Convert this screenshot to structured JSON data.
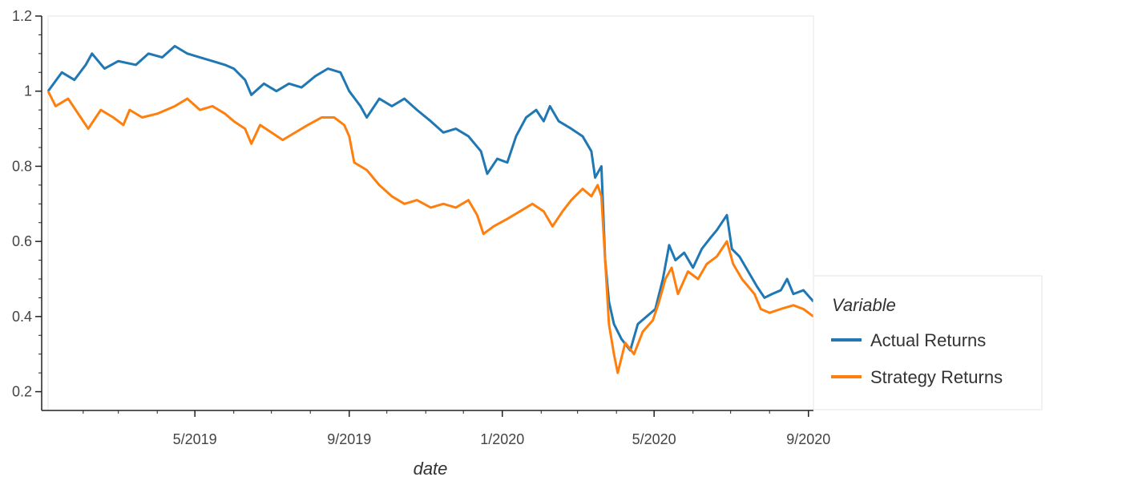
{
  "chart_data": {
    "type": "line",
    "xlabel": "date",
    "ylabel": "",
    "ylim": [
      0.15,
      1.2
    ],
    "xlim": [
      "2019-01-04",
      "2020-09-05"
    ],
    "x_ticks": [
      {
        "date": "2019-05-01",
        "label": "5/2019"
      },
      {
        "date": "2019-09-01",
        "label": "9/2019"
      },
      {
        "date": "2020-01-01",
        "label": "1/2020"
      },
      {
        "date": "2020-05-01",
        "label": "5/2020"
      },
      {
        "date": "2020-09-01",
        "label": "9/2020"
      }
    ],
    "y_ticks": [
      {
        "value": 0.2,
        "label": "0.2"
      },
      {
        "value": 0.4,
        "label": "0.4"
      },
      {
        "value": 0.6,
        "label": "0.6"
      },
      {
        "value": 0.8,
        "label": "0.8"
      },
      {
        "value": 1.0,
        "label": "1"
      },
      {
        "value": 1.2,
        "label": "1.2"
      }
    ],
    "grid": false,
    "legend": {
      "title": "Variable",
      "placement": "right-bottom-outside"
    },
    "series": [
      {
        "name": "Actual Returns",
        "color": "#1f77b4",
        "points": [
          [
            "2019-01-04",
            1.0
          ],
          [
            "2019-01-15",
            1.05
          ],
          [
            "2019-01-25",
            1.03
          ],
          [
            "2019-02-03",
            1.07
          ],
          [
            "2019-02-08",
            1.1
          ],
          [
            "2019-02-18",
            1.06
          ],
          [
            "2019-03-01",
            1.08
          ],
          [
            "2019-03-15",
            1.07
          ],
          [
            "2019-03-25",
            1.1
          ],
          [
            "2019-04-05",
            1.09
          ],
          [
            "2019-04-15",
            1.12
          ],
          [
            "2019-04-25",
            1.1
          ],
          [
            "2019-05-05",
            1.09
          ],
          [
            "2019-05-15",
            1.08
          ],
          [
            "2019-05-25",
            1.07
          ],
          [
            "2019-06-01",
            1.06
          ],
          [
            "2019-06-10",
            1.03
          ],
          [
            "2019-06-15",
            0.99
          ],
          [
            "2019-06-25",
            1.02
          ],
          [
            "2019-07-05",
            1.0
          ],
          [
            "2019-07-15",
            1.02
          ],
          [
            "2019-07-25",
            1.01
          ],
          [
            "2019-08-05",
            1.04
          ],
          [
            "2019-08-15",
            1.06
          ],
          [
            "2019-08-25",
            1.05
          ],
          [
            "2019-09-01",
            1.0
          ],
          [
            "2019-09-10",
            0.96
          ],
          [
            "2019-09-15",
            0.93
          ],
          [
            "2019-09-25",
            0.98
          ],
          [
            "2019-10-05",
            0.96
          ],
          [
            "2019-10-15",
            0.98
          ],
          [
            "2019-10-25",
            0.95
          ],
          [
            "2019-11-05",
            0.92
          ],
          [
            "2019-11-15",
            0.89
          ],
          [
            "2019-11-25",
            0.9
          ],
          [
            "2019-12-05",
            0.88
          ],
          [
            "2019-12-15",
            0.84
          ],
          [
            "2019-12-20",
            0.78
          ],
          [
            "2019-12-28",
            0.82
          ],
          [
            "2020-01-05",
            0.81
          ],
          [
            "2020-01-12",
            0.88
          ],
          [
            "2020-01-20",
            0.93
          ],
          [
            "2020-01-28",
            0.95
          ],
          [
            "2020-02-03",
            0.92
          ],
          [
            "2020-02-08",
            0.96
          ],
          [
            "2020-02-15",
            0.92
          ],
          [
            "2020-02-25",
            0.9
          ],
          [
            "2020-03-05",
            0.88
          ],
          [
            "2020-03-12",
            0.84
          ],
          [
            "2020-03-15",
            0.77
          ],
          [
            "2020-03-20",
            0.8
          ],
          [
            "2020-03-23",
            0.55
          ],
          [
            "2020-03-26",
            0.44
          ],
          [
            "2020-03-30",
            0.38
          ],
          [
            "2020-04-05",
            0.34
          ],
          [
            "2020-04-12",
            0.31
          ],
          [
            "2020-04-18",
            0.38
          ],
          [
            "2020-04-25",
            0.4
          ],
          [
            "2020-05-02",
            0.42
          ],
          [
            "2020-05-08",
            0.5
          ],
          [
            "2020-05-13",
            0.59
          ],
          [
            "2020-05-18",
            0.55
          ],
          [
            "2020-05-25",
            0.57
          ],
          [
            "2020-06-01",
            0.53
          ],
          [
            "2020-06-08",
            0.58
          ],
          [
            "2020-06-15",
            0.61
          ],
          [
            "2020-06-20",
            0.63
          ],
          [
            "2020-06-28",
            0.67
          ],
          [
            "2020-07-02",
            0.58
          ],
          [
            "2020-07-08",
            0.56
          ],
          [
            "2020-07-15",
            0.52
          ],
          [
            "2020-07-22",
            0.48
          ],
          [
            "2020-07-28",
            0.45
          ],
          [
            "2020-08-03",
            0.46
          ],
          [
            "2020-08-10",
            0.47
          ],
          [
            "2020-08-15",
            0.5
          ],
          [
            "2020-08-20",
            0.46
          ],
          [
            "2020-08-28",
            0.47
          ],
          [
            "2020-09-05",
            0.44
          ]
        ]
      },
      {
        "name": "Strategy Returns",
        "color": "#ff7f0e",
        "points": [
          [
            "2019-01-04",
            1.0
          ],
          [
            "2019-01-10",
            0.96
          ],
          [
            "2019-01-20",
            0.98
          ],
          [
            "2019-01-30",
            0.93
          ],
          [
            "2019-02-05",
            0.9
          ],
          [
            "2019-02-15",
            0.95
          ],
          [
            "2019-02-25",
            0.93
          ],
          [
            "2019-03-05",
            0.91
          ],
          [
            "2019-03-10",
            0.95
          ],
          [
            "2019-03-20",
            0.93
          ],
          [
            "2019-04-01",
            0.94
          ],
          [
            "2019-04-15",
            0.96
          ],
          [
            "2019-04-25",
            0.98
          ],
          [
            "2019-05-05",
            0.95
          ],
          [
            "2019-05-15",
            0.96
          ],
          [
            "2019-05-25",
            0.94
          ],
          [
            "2019-06-01",
            0.92
          ],
          [
            "2019-06-10",
            0.9
          ],
          [
            "2019-06-15",
            0.86
          ],
          [
            "2019-06-22",
            0.91
          ],
          [
            "2019-07-01",
            0.89
          ],
          [
            "2019-07-10",
            0.87
          ],
          [
            "2019-07-20",
            0.89
          ],
          [
            "2019-07-30",
            0.91
          ],
          [
            "2019-08-10",
            0.93
          ],
          [
            "2019-08-20",
            0.93
          ],
          [
            "2019-08-28",
            0.91
          ],
          [
            "2019-09-01",
            0.88
          ],
          [
            "2019-09-05",
            0.81
          ],
          [
            "2019-09-15",
            0.79
          ],
          [
            "2019-09-25",
            0.75
          ],
          [
            "2019-10-05",
            0.72
          ],
          [
            "2019-10-15",
            0.7
          ],
          [
            "2019-10-25",
            0.71
          ],
          [
            "2019-11-05",
            0.69
          ],
          [
            "2019-11-15",
            0.7
          ],
          [
            "2019-11-25",
            0.69
          ],
          [
            "2019-12-05",
            0.71
          ],
          [
            "2019-12-12",
            0.67
          ],
          [
            "2019-12-17",
            0.62
          ],
          [
            "2019-12-25",
            0.64
          ],
          [
            "2020-01-05",
            0.66
          ],
          [
            "2020-01-15",
            0.68
          ],
          [
            "2020-01-25",
            0.7
          ],
          [
            "2020-02-03",
            0.68
          ],
          [
            "2020-02-10",
            0.64
          ],
          [
            "2020-02-18",
            0.68
          ],
          [
            "2020-02-25",
            0.71
          ],
          [
            "2020-03-05",
            0.74
          ],
          [
            "2020-03-12",
            0.72
          ],
          [
            "2020-03-17",
            0.75
          ],
          [
            "2020-03-20",
            0.72
          ],
          [
            "2020-03-23",
            0.55
          ],
          [
            "2020-03-26",
            0.38
          ],
          [
            "2020-03-30",
            0.3
          ],
          [
            "2020-04-02",
            0.25
          ],
          [
            "2020-04-08",
            0.33
          ],
          [
            "2020-04-15",
            0.3
          ],
          [
            "2020-04-22",
            0.36
          ],
          [
            "2020-04-30",
            0.39
          ],
          [
            "2020-05-05",
            0.44
          ],
          [
            "2020-05-10",
            0.5
          ],
          [
            "2020-05-15",
            0.53
          ],
          [
            "2020-05-20",
            0.46
          ],
          [
            "2020-05-28",
            0.52
          ],
          [
            "2020-06-05",
            0.5
          ],
          [
            "2020-06-12",
            0.54
          ],
          [
            "2020-06-20",
            0.56
          ],
          [
            "2020-06-28",
            0.6
          ],
          [
            "2020-07-03",
            0.54
          ],
          [
            "2020-07-10",
            0.5
          ],
          [
            "2020-07-20",
            0.46
          ],
          [
            "2020-07-25",
            0.42
          ],
          [
            "2020-08-01",
            0.41
          ],
          [
            "2020-08-10",
            0.42
          ],
          [
            "2020-08-20",
            0.43
          ],
          [
            "2020-08-28",
            0.42
          ],
          [
            "2020-09-05",
            0.4
          ]
        ]
      }
    ]
  }
}
